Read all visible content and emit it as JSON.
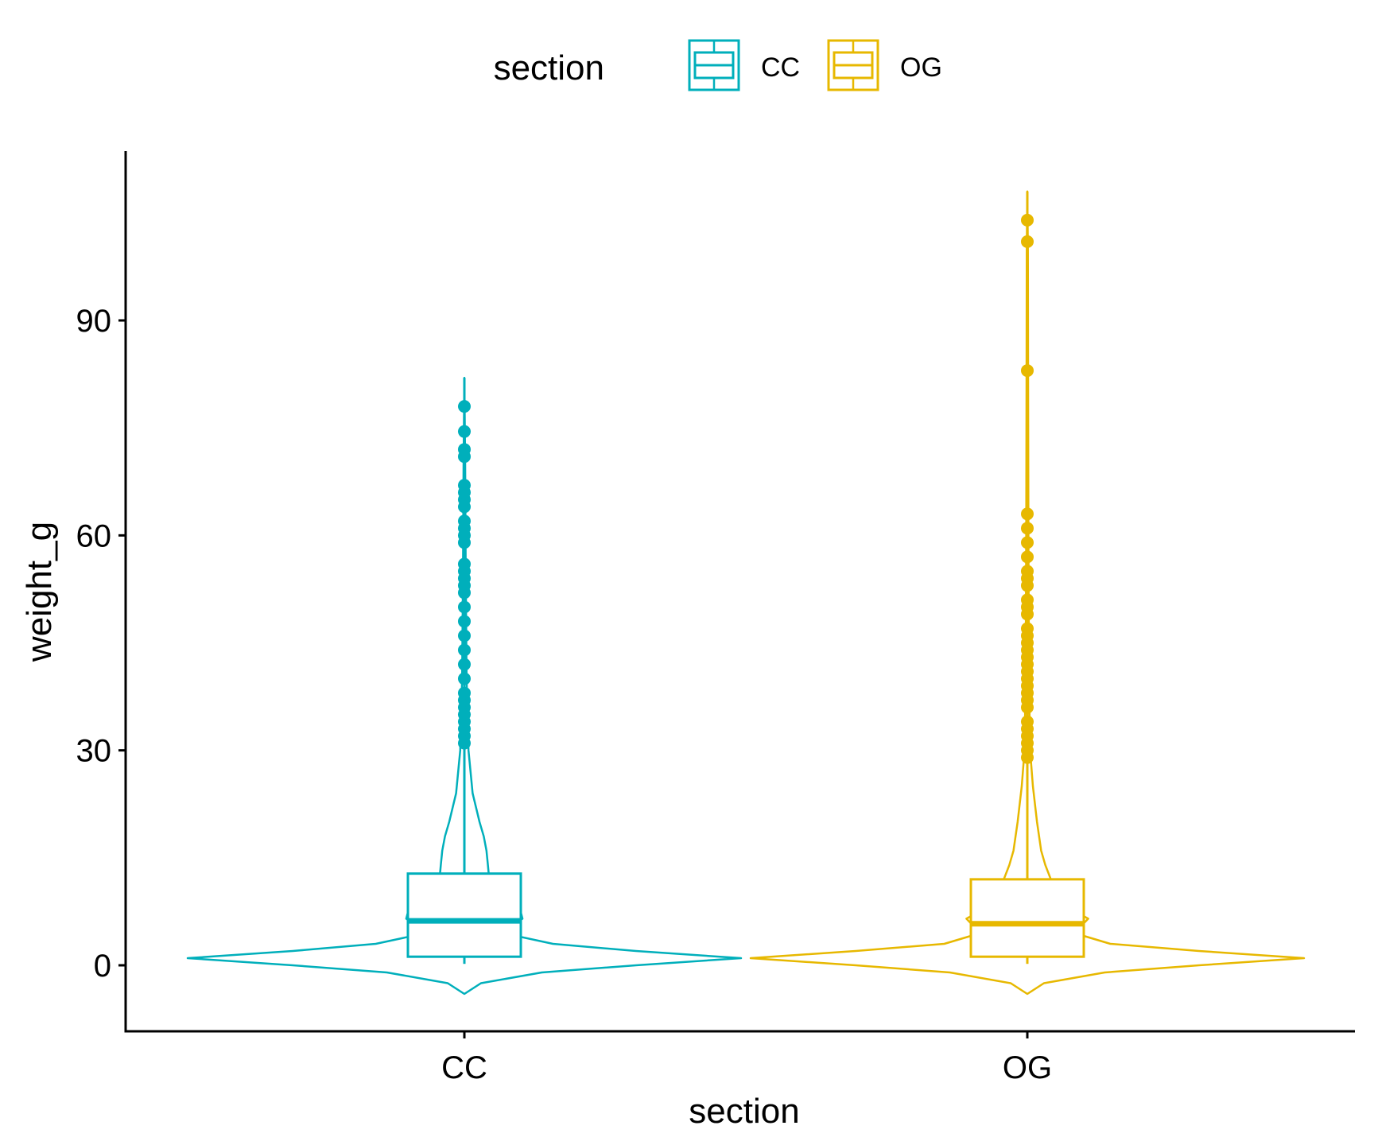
{
  "chart_data": {
    "type": "violin",
    "xlabel": "section",
    "ylabel": "weight_g",
    "ylim": [
      -10,
      112
    ],
    "yticks": [
      0,
      30,
      60,
      90
    ],
    "grid": false,
    "legend": {
      "title": "section",
      "position": "top",
      "entries": [
        "CC",
        "OG"
      ]
    },
    "categories": [
      "CC",
      "OG"
    ],
    "series": [
      {
        "name": "CC",
        "color": "#00AFBB",
        "box": {
          "q1": 1.2,
          "median": 6.2,
          "q3": 12.8,
          "whisker_low": 0.2,
          "whisker_high": 30.5
        },
        "violin_range": [
          -4,
          82
        ],
        "density": [
          [
            -4,
            0.0
          ],
          [
            -2.5,
            0.06
          ],
          [
            -1,
            0.28
          ],
          [
            0,
            0.62
          ],
          [
            1,
            1.0
          ],
          [
            2,
            0.62
          ],
          [
            3,
            0.32
          ],
          [
            4.5,
            0.14
          ],
          [
            6.5,
            0.21
          ],
          [
            8,
            0.2
          ],
          [
            10,
            0.1
          ],
          [
            12,
            0.09
          ],
          [
            14,
            0.085
          ],
          [
            16,
            0.08
          ],
          [
            18,
            0.07
          ],
          [
            20,
            0.055
          ],
          [
            24,
            0.03
          ],
          [
            30,
            0.015
          ],
          [
            40,
            0.008
          ],
          [
            55,
            0.005
          ],
          [
            70,
            0.003
          ],
          [
            82,
            0.0
          ]
        ],
        "outliers": [
          31,
          32,
          33,
          34,
          35,
          36,
          37,
          38,
          40,
          42,
          44,
          46,
          48,
          50,
          52,
          53,
          54,
          55,
          56,
          59,
          60,
          61,
          62,
          64,
          65,
          66,
          67,
          71,
          72,
          74.5,
          78
        ]
      },
      {
        "name": "OG",
        "color": "#E7B800",
        "box": {
          "q1": 1.2,
          "median": 5.8,
          "q3": 12.0,
          "whisker_low": 0.2,
          "whisker_high": 28.5
        },
        "violin_range": [
          -4,
          108
        ],
        "density": [
          [
            -4,
            0.0
          ],
          [
            -2.5,
            0.06
          ],
          [
            -1,
            0.28
          ],
          [
            0,
            0.62
          ],
          [
            1,
            1.0
          ],
          [
            2,
            0.62
          ],
          [
            3,
            0.3
          ],
          [
            4.5,
            0.17
          ],
          [
            6.5,
            0.22
          ],
          [
            8,
            0.15
          ],
          [
            10,
            0.1
          ],
          [
            12,
            0.085
          ],
          [
            14,
            0.065
          ],
          [
            16,
            0.05
          ],
          [
            20,
            0.035
          ],
          [
            25,
            0.02
          ],
          [
            30,
            0.01
          ],
          [
            40,
            0.006
          ],
          [
            60,
            0.004
          ],
          [
            80,
            0.003
          ],
          [
            100,
            0.002
          ],
          [
            108,
            0.0
          ]
        ],
        "outliers": [
          29,
          30,
          31,
          32,
          33,
          34,
          36,
          37,
          38,
          39,
          40,
          41,
          42,
          43,
          44,
          45,
          46,
          47,
          49,
          50,
          51,
          53,
          54,
          55,
          57,
          59,
          61,
          63,
          83,
          101,
          104
        ]
      }
    ]
  }
}
